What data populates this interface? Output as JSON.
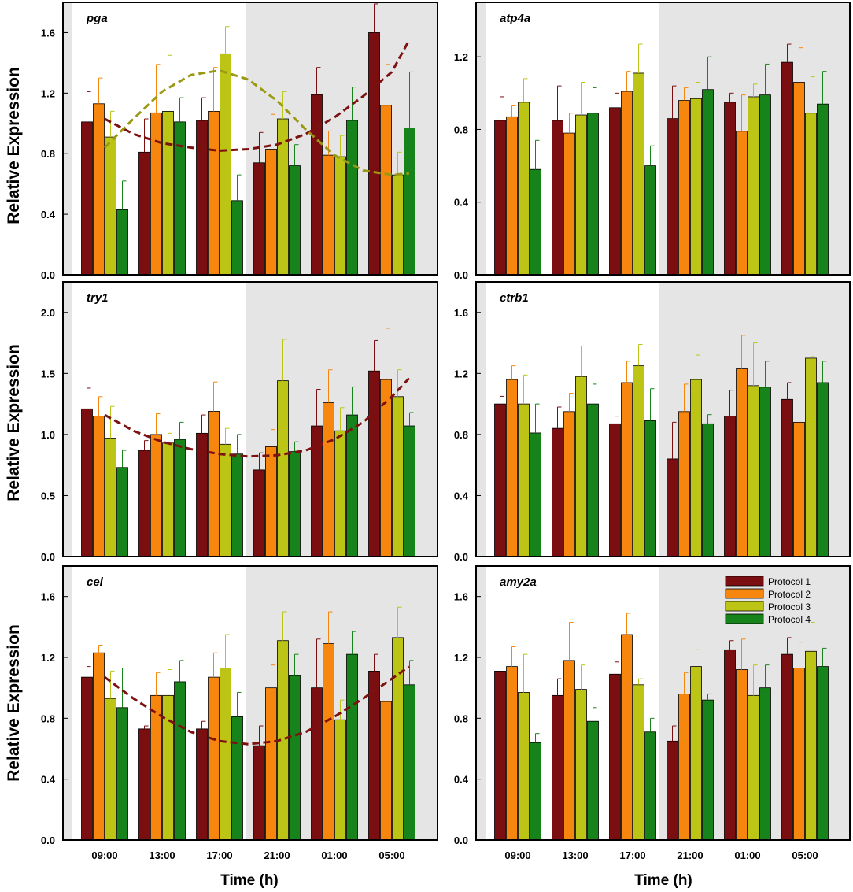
{
  "figure": {
    "y_label": "Relative Expression",
    "x_label": "Time (h)"
  },
  "colors": {
    "protocol_1": "#7b0e10",
    "protocol_2": "#f7860f",
    "protocol_3": "#bcc416",
    "protocol_4": "#17841b",
    "night_shade": "#e5e5e5",
    "fit_protocol_1": "#7d1111",
    "fit_protocol_3": "#9b9914"
  },
  "legend": [
    "Protocol 1",
    "Protocol 2",
    "Protocol 3",
    "Protocol 4"
  ],
  "chart_data": [
    {
      "type": "bar",
      "gene": "pga",
      "categories": [
        "09:00",
        "13:00",
        "17:00",
        "21:00",
        "01:00",
        "05:00"
      ],
      "ylim": [
        0,
        1.8
      ],
      "yticks": [
        "0.0",
        "0.4",
        "0.8",
        "1.2",
        "1.6"
      ],
      "series": [
        {
          "name": "Protocol 1",
          "values": [
            1.01,
            0.81,
            1.02,
            0.74,
            1.19,
            1.6
          ],
          "errors": [
            0.2,
            0.22,
            0.15,
            0.2,
            0.18,
            0.19
          ]
        },
        {
          "name": "Protocol 2",
          "values": [
            1.13,
            1.07,
            1.08,
            0.83,
            0.79,
            1.12
          ],
          "errors": [
            0.17,
            0.32,
            0.29,
            0.23,
            0.16,
            0.27
          ]
        },
        {
          "name": "Protocol 3",
          "values": [
            0.91,
            1.08,
            1.46,
            1.03,
            0.78,
            0.66
          ],
          "errors": [
            0.17,
            0.37,
            0.18,
            0.18,
            0.14,
            0.15
          ]
        },
        {
          "name": "Protocol 4",
          "values": [
            0.43,
            1.01,
            0.49,
            0.72,
            1.02,
            0.97
          ],
          "errors": [
            0.19,
            0.16,
            0.17,
            0.14,
            0.22,
            0.37
          ]
        }
      ],
      "fits": [
        {
          "series": "Protocol 1",
          "points": [
            [
              0,
              1.03
            ],
            [
              0.5,
              0.93
            ],
            [
              1,
              0.87
            ],
            [
              1.5,
              0.84
            ],
            [
              2,
              0.82
            ],
            [
              2.5,
              0.83
            ],
            [
              3,
              0.86
            ],
            [
              3.5,
              0.93
            ],
            [
              4,
              1.04
            ],
            [
              4.5,
              1.18
            ],
            [
              5,
              1.34
            ],
            [
              5.3,
              1.55
            ]
          ]
        },
        {
          "series": "Protocol 3",
          "points": [
            [
              0,
              0.84
            ],
            [
              0.5,
              1.03
            ],
            [
              1,
              1.21
            ],
            [
              1.5,
              1.32
            ],
            [
              2,
              1.35
            ],
            [
              2.5,
              1.29
            ],
            [
              3,
              1.15
            ],
            [
              3.5,
              0.96
            ],
            [
              4,
              0.79
            ],
            [
              4.5,
              0.69
            ],
            [
              5,
              0.66
            ],
            [
              5.3,
              0.67
            ]
          ]
        }
      ]
    },
    {
      "type": "bar",
      "gene": "atp4a",
      "categories": [
        "09:00",
        "13:00",
        "17:00",
        "21:00",
        "01:00",
        "05:00"
      ],
      "ylim": [
        0,
        1.5
      ],
      "yticks": [
        "0.0",
        "0.4",
        "0.8",
        "1.2"
      ],
      "series": [
        {
          "name": "Protocol 1",
          "values": [
            0.85,
            0.85,
            0.92,
            0.86,
            0.95,
            1.17
          ],
          "errors": [
            0.13,
            0.19,
            0.08,
            0.18,
            0.05,
            0.1
          ]
        },
        {
          "name": "Protocol 2",
          "values": [
            0.87,
            0.78,
            1.01,
            0.96,
            0.79,
            1.06
          ],
          "errors": [
            0.06,
            0.11,
            0.11,
            0.07,
            0.2,
            0.19
          ]
        },
        {
          "name": "Protocol 3",
          "values": [
            0.95,
            0.88,
            1.11,
            0.97,
            0.98,
            0.89
          ],
          "errors": [
            0.13,
            0.18,
            0.16,
            0.09,
            0.07,
            0.2
          ]
        },
        {
          "name": "Protocol 4",
          "values": [
            0.58,
            0.89,
            0.6,
            1.02,
            0.99,
            0.94
          ],
          "errors": [
            0.16,
            0.14,
            0.11,
            0.18,
            0.17,
            0.18
          ]
        }
      ]
    },
    {
      "type": "bar",
      "gene": "try1",
      "categories": [
        "09:00",
        "13:00",
        "17:00",
        "21:00",
        "01:00",
        "05:00"
      ],
      "ylim": [
        0,
        2.25
      ],
      "yticks": [
        "0.0",
        "0.5",
        "1.0",
        "1.5",
        "2.0"
      ],
      "series": [
        {
          "name": "Protocol 1",
          "values": [
            1.21,
            0.87,
            1.01,
            0.71,
            1.07,
            1.52
          ],
          "errors": [
            0.17,
            0.08,
            0.15,
            0.14,
            0.3,
            0.25
          ]
        },
        {
          "name": "Protocol 2",
          "values": [
            1.15,
            1.0,
            1.19,
            0.9,
            1.26,
            1.45
          ],
          "errors": [
            0.16,
            0.17,
            0.24,
            0.14,
            0.27,
            0.42
          ]
        },
        {
          "name": "Protocol 3",
          "values": [
            0.97,
            0.93,
            0.92,
            1.44,
            1.03,
            1.31
          ],
          "errors": [
            0.26,
            0.08,
            0.13,
            0.34,
            0.19,
            0.22
          ]
        },
        {
          "name": "Protocol 4",
          "values": [
            0.73,
            0.96,
            0.84,
            0.86,
            1.16,
            1.07
          ],
          "errors": [
            0.14,
            0.14,
            0.16,
            0.08,
            0.23,
            0.11
          ]
        }
      ],
      "fits": [
        {
          "series": "Protocol 1",
          "points": [
            [
              0,
              1.16
            ],
            [
              0.5,
              1.03
            ],
            [
              1,
              0.94
            ],
            [
              1.5,
              0.88
            ],
            [
              2,
              0.84
            ],
            [
              2.5,
              0.82
            ],
            [
              3,
              0.83
            ],
            [
              3.5,
              0.87
            ],
            [
              4,
              0.96
            ],
            [
              4.5,
              1.1
            ],
            [
              5,
              1.31
            ],
            [
              5.3,
              1.46
            ]
          ]
        }
      ]
    },
    {
      "type": "bar",
      "gene": "ctrb1",
      "categories": [
        "09:00",
        "13:00",
        "17:00",
        "21:00",
        "01:00",
        "05:00"
      ],
      "ylim": [
        0,
        1.8
      ],
      "yticks": [
        "0.0",
        "0.4",
        "0.8",
        "1.2",
        "1.6"
      ],
      "series": [
        {
          "name": "Protocol 1",
          "values": [
            1.0,
            0.84,
            0.87,
            0.64,
            0.92,
            1.03
          ],
          "errors": [
            0.05,
            0.14,
            0.05,
            0.24,
            0.17,
            0.11
          ]
        },
        {
          "name": "Protocol 2",
          "values": [
            1.16,
            0.95,
            1.14,
            0.95,
            1.23,
            0.88
          ],
          "errors": [
            0.09,
            0.12,
            0.14,
            0.18,
            0.22,
            0.0
          ]
        },
        {
          "name": "Protocol 3",
          "values": [
            1.0,
            1.18,
            1.25,
            1.16,
            1.12,
            1.3
          ],
          "errors": [
            0.19,
            0.2,
            0.14,
            0.16,
            0.28,
            0.01
          ]
        },
        {
          "name": "Protocol 4",
          "values": [
            0.81,
            1.0,
            0.89,
            0.87,
            1.11,
            1.14
          ],
          "errors": [
            0.19,
            0.13,
            0.21,
            0.06,
            0.17,
            0.14
          ]
        }
      ]
    },
    {
      "type": "bar",
      "gene": "cel",
      "categories": [
        "09:00",
        "13:00",
        "17:00",
        "21:00",
        "01:00",
        "05:00"
      ],
      "ylim": [
        0,
        1.8
      ],
      "yticks": [
        "0.0",
        "0.4",
        "0.8",
        "1.2",
        "1.6"
      ],
      "series": [
        {
          "name": "Protocol 1",
          "values": [
            1.07,
            0.73,
            0.73,
            0.62,
            1.0,
            1.11
          ],
          "errors": [
            0.07,
            0.02,
            0.05,
            0.13,
            0.32,
            0.11
          ]
        },
        {
          "name": "Protocol 2",
          "values": [
            1.23,
            0.95,
            1.07,
            1.0,
            1.29,
            0.91
          ],
          "errors": [
            0.05,
            0.15,
            0.16,
            0.15,
            0.21,
            0.0
          ]
        },
        {
          "name": "Protocol 3",
          "values": [
            0.93,
            0.95,
            1.13,
            1.31,
            0.79,
            1.33
          ],
          "errors": [
            0.18,
            0.17,
            0.22,
            0.19,
            0.13,
            0.2
          ]
        },
        {
          "name": "Protocol 4",
          "values": [
            0.87,
            1.04,
            0.81,
            1.08,
            1.22,
            1.02
          ],
          "errors": [
            0.26,
            0.14,
            0.16,
            0.14,
            0.15,
            0.16
          ]
        }
      ],
      "fits": [
        {
          "series": "Protocol 1",
          "points": [
            [
              0,
              1.07
            ],
            [
              0.5,
              0.93
            ],
            [
              1,
              0.81
            ],
            [
              1.5,
              0.71
            ],
            [
              2,
              0.65
            ],
            [
              2.5,
              0.63
            ],
            [
              3,
              0.65
            ],
            [
              3.5,
              0.71
            ],
            [
              4,
              0.81
            ],
            [
              4.5,
              0.93
            ],
            [
              5,
              1.06
            ],
            [
              5.3,
              1.14
            ]
          ]
        }
      ]
    },
    {
      "type": "bar",
      "gene": "amy2a",
      "categories": [
        "09:00",
        "13:00",
        "17:00",
        "21:00",
        "01:00",
        "05:00"
      ],
      "ylim": [
        0,
        1.8
      ],
      "yticks": [
        "0.0",
        "0.4",
        "0.8",
        "1.2",
        "1.6"
      ],
      "series": [
        {
          "name": "Protocol 1",
          "values": [
            1.11,
            0.95,
            1.09,
            0.65,
            1.25,
            1.22
          ],
          "errors": [
            0.02,
            0.11,
            0.08,
            0.1,
            0.06,
            0.11
          ]
        },
        {
          "name": "Protocol 2",
          "values": [
            1.14,
            1.18,
            1.35,
            0.96,
            1.12,
            1.13
          ],
          "errors": [
            0.13,
            0.25,
            0.14,
            0.14,
            0.2,
            0.17
          ]
        },
        {
          "name": "Protocol 3",
          "values": [
            0.97,
            0.99,
            1.02,
            1.14,
            0.95,
            1.24
          ],
          "errors": [
            0.25,
            0.16,
            0.04,
            0.11,
            0.2,
            0.19
          ]
        },
        {
          "name": "Protocol 4",
          "values": [
            0.64,
            0.78,
            0.71,
            0.92,
            1.0,
            1.14
          ],
          "errors": [
            0.06,
            0.09,
            0.09,
            0.04,
            0.15,
            0.12
          ]
        }
      ]
    }
  ]
}
